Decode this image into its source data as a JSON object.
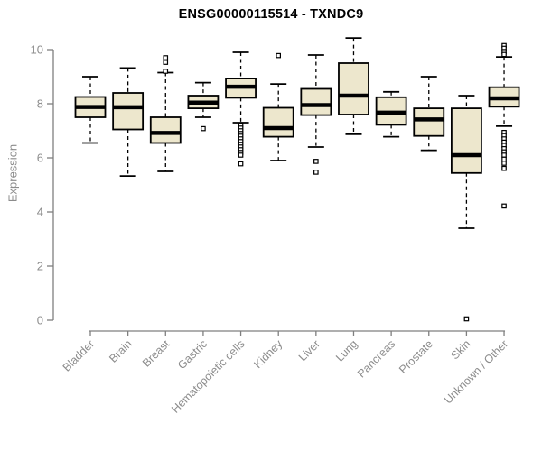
{
  "chart_data": {
    "type": "boxplot",
    "title": "ENSG00000115514 - TXNDC9",
    "ylabel": "Expression",
    "xlabel": "",
    "ylim": [
      0,
      10.6
    ],
    "yticks": [
      0,
      2,
      4,
      6,
      8,
      10
    ],
    "grid": "off",
    "legend": "none",
    "categories": [
      "Bladder",
      "Brain",
      "Breast",
      "Gastric",
      "Hematopoietic cells",
      "Kidney",
      "Liver",
      "Lung",
      "Pancreas",
      "Prostate",
      "Skin",
      "Unknown / Other"
    ],
    "series": [
      {
        "name": "Bladder",
        "whisker_low": 6.55,
        "q1": 7.5,
        "median": 7.88,
        "q3": 8.25,
        "whisker_high": 9.0,
        "outliers": []
      },
      {
        "name": "Brain",
        "whisker_low": 5.33,
        "q1": 7.05,
        "median": 7.87,
        "q3": 8.4,
        "whisker_high": 9.32,
        "outliers": []
      },
      {
        "name": "Breast",
        "whisker_low": 5.5,
        "q1": 6.55,
        "median": 6.92,
        "q3": 7.5,
        "whisker_high": 9.15,
        "outliers": [
          9.7,
          9.53,
          9.2
        ]
      },
      {
        "name": "Gastric",
        "whisker_low": 7.5,
        "q1": 7.83,
        "median": 8.04,
        "q3": 8.3,
        "whisker_high": 8.78,
        "outliers": [
          7.08
        ]
      },
      {
        "name": "Hematopoietic cells",
        "whisker_low": 7.3,
        "q1": 8.22,
        "median": 8.63,
        "q3": 8.93,
        "whisker_high": 9.9,
        "outliers": [
          7.2,
          7.1,
          7.0,
          6.9,
          6.8,
          6.7,
          6.6,
          6.5,
          6.4,
          6.3,
          6.2,
          6.1,
          5.78
        ]
      },
      {
        "name": "Kidney",
        "whisker_low": 5.9,
        "q1": 6.78,
        "median": 7.1,
        "q3": 7.85,
        "whisker_high": 8.73,
        "outliers": [
          9.78
        ]
      },
      {
        "name": "Liver",
        "whisker_low": 6.4,
        "q1": 7.58,
        "median": 7.95,
        "q3": 8.55,
        "whisker_high": 9.8,
        "outliers": [
          5.87,
          5.47
        ]
      },
      {
        "name": "Lung",
        "whisker_low": 6.87,
        "q1": 7.6,
        "median": 8.3,
        "q3": 9.5,
        "whisker_high": 10.43,
        "outliers": []
      },
      {
        "name": "Pancreas",
        "whisker_low": 6.78,
        "q1": 7.22,
        "median": 7.67,
        "q3": 8.24,
        "whisker_high": 8.44,
        "outliers": []
      },
      {
        "name": "Prostate",
        "whisker_low": 6.28,
        "q1": 6.81,
        "median": 7.42,
        "q3": 7.83,
        "whisker_high": 9.0,
        "outliers": []
      },
      {
        "name": "Skin",
        "whisker_low": 3.4,
        "q1": 5.44,
        "median": 6.1,
        "q3": 7.83,
        "whisker_high": 8.3,
        "outliers": [
          0.05
        ]
      },
      {
        "name": "Unknown / Other",
        "whisker_low": 7.17,
        "q1": 7.89,
        "median": 8.2,
        "q3": 8.61,
        "whisker_high": 9.73,
        "outliers": [
          10.15,
          10.05,
          9.93,
          9.82,
          6.94,
          6.82,
          6.7,
          6.58,
          6.46,
          6.34,
          6.22,
          6.1,
          5.95,
          5.8,
          5.61,
          4.22
        ]
      }
    ],
    "colors": {
      "box_fill": "#EDE7CD",
      "box_stroke": "#000000",
      "median": "#000000",
      "axis_line": "#7F7F7F",
      "axis_text": "#8C8C8C",
      "title_text": "#000000"
    }
  }
}
